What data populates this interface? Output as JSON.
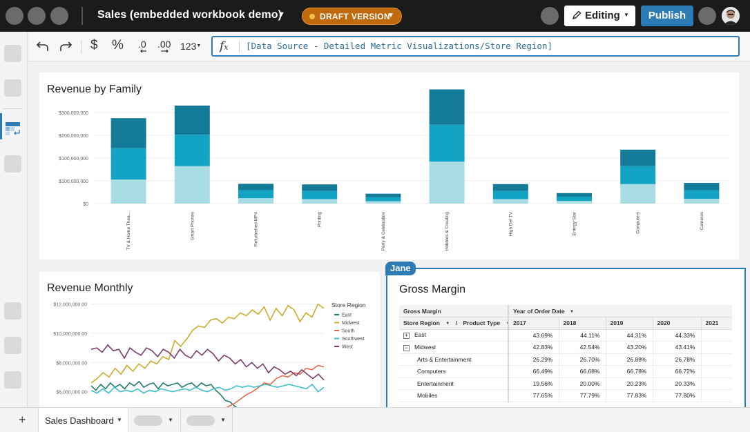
{
  "app": {
    "title": "Sales (embedded workbook demo)",
    "draft_label": "DRAFT VERSION",
    "editing_label": "Editing",
    "publish_label": "Publish"
  },
  "toolbar": {
    "undo_icon": "undo-icon",
    "redo_icon": "redo-icon",
    "currency_symbol": "$",
    "percent_symbol": "%",
    "number_format_label": "123",
    "formula": "[Data Source - Detailed Metric Visualizations/Store Region]"
  },
  "colors": {
    "accent": "#2c7bb5",
    "draft": "#c06a0d",
    "bar_dark": "#137a98",
    "bar_mid": "#12a3c5",
    "bar_light": "#a9dde4",
    "east": "#1f7a6a",
    "midwest": "#c9ad2d",
    "south": "#e06a4c",
    "southwest": "#3dbfc9",
    "west": "#7a3d6a"
  },
  "revenue_by_family": {
    "title": "Revenue by Family"
  },
  "revenue_monthly": {
    "title": "Revenue Monthly",
    "legend_title": "Store Region"
  },
  "gross_margin": {
    "title": "Gross Margin",
    "collaborator": "Jane",
    "corner_header": "Gross Margin",
    "column_group_header": "Year of Order Date",
    "row_header_1": "Store Region",
    "row_header_sep": "/",
    "row_header_2": "Product Type",
    "years": [
      "2017",
      "2018",
      "2019",
      "2020",
      "2021"
    ],
    "rows": [
      {
        "label": "East",
        "expander": "+",
        "values": [
          "43.69%",
          "44.11%",
          "44.31%",
          "44.33%",
          ""
        ]
      },
      {
        "label": "Midwest",
        "expander": "−",
        "values": [
          "42.83%",
          "42.54%",
          "43.20%",
          "43.41%",
          ""
        ]
      },
      {
        "label": "Arts & Entertainment",
        "values": [
          "26.29%",
          "26.70%",
          "26.88%",
          "26.78%",
          ""
        ]
      },
      {
        "label": "Computers",
        "values": [
          "66.49%",
          "66.68%",
          "66.78%",
          "66.72%",
          ""
        ]
      },
      {
        "label": "Entertainment",
        "values": [
          "19.56%",
          "20.00%",
          "20.23%",
          "20.33%",
          ""
        ]
      },
      {
        "label": "Mobiles",
        "values": [
          "77.65%",
          "77.79%",
          "77.83%",
          "77.80%",
          ""
        ]
      }
    ]
  },
  "tabs": {
    "active_label": "Sales Dashboard",
    "add_icon": "plus-icon"
  },
  "chart_data": [
    {
      "type": "bar",
      "title": "Revenue by Family",
      "stacked": true,
      "categories": [
        "TV & Home Thea...",
        "Smart Phones",
        "Refurbished MP4",
        "Printing",
        "Party & Celebration",
        "Hobbies & Creating",
        "High Def TV",
        "Energy Star",
        "Computers",
        "Cameras"
      ],
      "series": [
        {
          "values": [
            80000000,
            125000000,
            18000000,
            15000000,
            8000000,
            140000000,
            15000000,
            9000000,
            65000000,
            16000000
          ]
        },
        {
          "values": [
            105000000,
            105000000,
            27000000,
            27000000,
            14000000,
            123000000,
            27000000,
            14000000,
            60000000,
            29000000
          ]
        },
        {
          "values": [
            100000000,
            97000000,
            21000000,
            22000000,
            11000000,
            118000000,
            23000000,
            12000000,
            55000000,
            24000000
          ]
        }
      ],
      "yticks": [
        "$0",
        "$100,000,000",
        "$100,000,000",
        "$200,000,000",
        "$300,000,000"
      ],
      "ylim": [
        0,
        380000000
      ],
      "grid": true
    },
    {
      "type": "line",
      "title": "Revenue Monthly",
      "legend_title": "Store Region",
      "legend_position": "right",
      "yticks": [
        "$6,000,000.00",
        "$8,000,000.00",
        "$10,000,000.00",
        "$12,000,000.00"
      ],
      "ylim": [
        4800000,
        12500000
      ],
      "grid": true,
      "series": [
        {
          "name": "East",
          "values": [
            6.4,
            6.1,
            6.5,
            6.2,
            6.6,
            6.3,
            6.5,
            6.2,
            6.6,
            6.4,
            6.7,
            6.3,
            6.5,
            6.6,
            6.2,
            6.6,
            6.4,
            6.5,
            6.6,
            6.3,
            6.5,
            6.6,
            6.3,
            6.6,
            6.4,
            6.5,
            6.1,
            5.8,
            5.4,
            5.3,
            5.0,
            4.8,
            4.6,
            4.5,
            4.4
          ]
        },
        {
          "name": "Midwest",
          "values": [
            6.6,
            6.9,
            7.3,
            7.0,
            7.6,
            7.2,
            7.8,
            7.4,
            7.9,
            7.6,
            8.1,
            7.9,
            8.4,
            8.2,
            9.5,
            9.1,
            9.6,
            10.2,
            10.5,
            10.4,
            10.9,
            11.0,
            10.7,
            11.1,
            11.0,
            11.4,
            11.2,
            11.6,
            11.3,
            11.8,
            10.9,
            11.7,
            11.2,
            11.9,
            11.6,
            10.8,
            11.4,
            11.1,
            12.0,
            11.7
          ]
        },
        {
          "name": "South",
          "values": [
            4.6,
            4.8,
            5.0,
            5.2,
            5.5,
            5.8,
            6.0,
            6.3,
            6.6,
            6.5,
            6.9,
            7.1,
            7.0,
            7.3,
            7.2,
            7.6,
            7.5,
            7.8,
            7.7
          ]
        },
        {
          "name": "Southwest",
          "values": [
            6.1,
            5.9,
            6.2,
            5.9,
            6.3,
            6.0,
            6.1,
            6.0,
            6.2,
            5.9,
            6.1,
            6.0,
            6.2,
            6.1,
            6.0,
            6.1,
            6.2,
            6.1,
            6.3,
            6.1,
            6.0,
            6.2,
            6.3,
            6.1,
            6.2,
            6.4,
            6.3,
            6.4,
            6.3,
            6.4,
            6.5,
            6.4,
            6.3,
            6.4,
            6.5,
            6.4,
            6.3,
            6.2,
            6.5,
            6.0,
            6.3
          ]
        },
        {
          "name": "West",
          "values": [
            8.9,
            9.0,
            8.7,
            9.2,
            8.8,
            8.9,
            8.3,
            9.0,
            8.7,
            8.5,
            9.0,
            8.8,
            8.4,
            8.9,
            8.7,
            8.3,
            8.9,
            8.5,
            8.3,
            8.8,
            8.5,
            8.9,
            8.6,
            8.1,
            8.5,
            8.3,
            7.9,
            8.2,
            7.7,
            8.0,
            7.6,
            7.9,
            7.3,
            7.7,
            7.5,
            7.2,
            7.4,
            7.1,
            7.5,
            7.2,
            6.9,
            7.2,
            6.8
          ]
        }
      ]
    }
  ]
}
